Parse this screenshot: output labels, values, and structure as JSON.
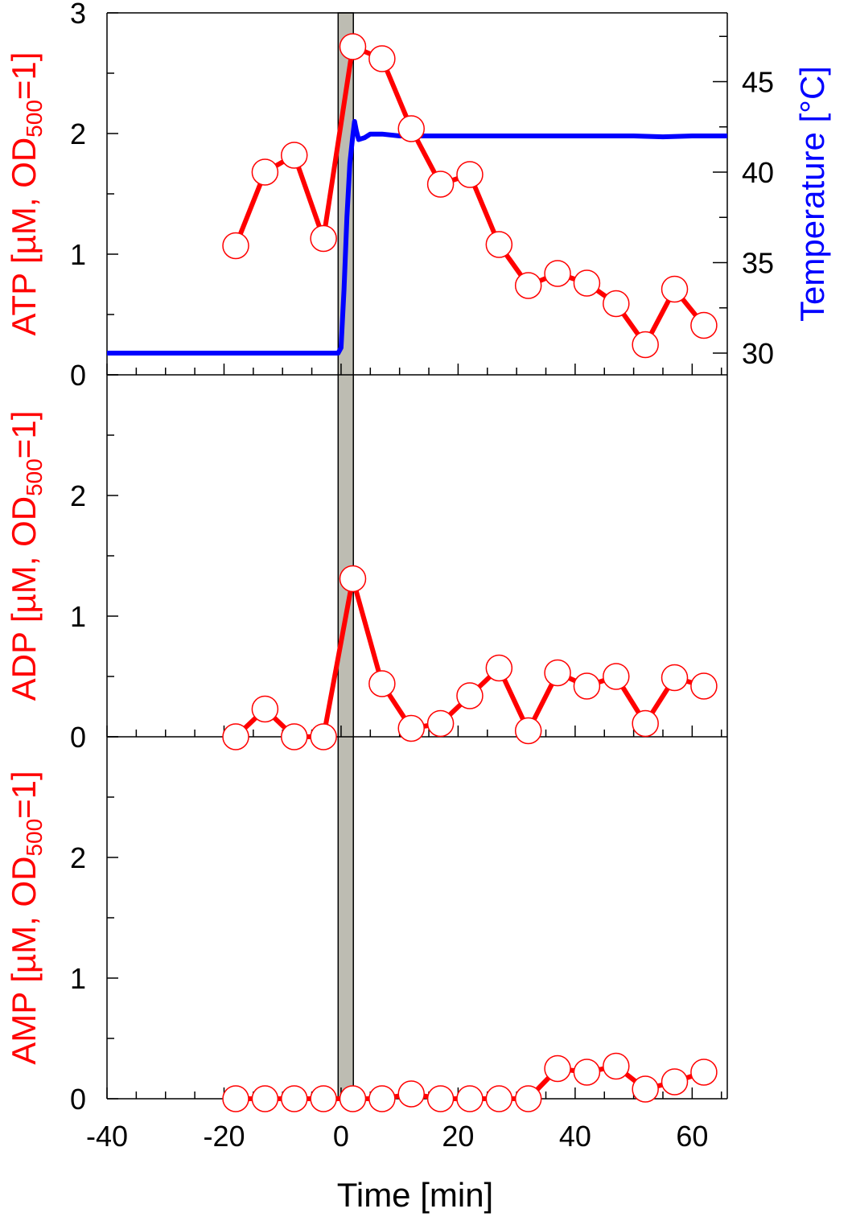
{
  "chart_data": {
    "type": "line",
    "xlabel": "Time [min]",
    "xlim": [
      -40,
      66
    ],
    "x_ticks": [
      -40,
      -20,
      0,
      20,
      40,
      60
    ],
    "heat_shock_band": [
      -0.5,
      2.1
    ],
    "colors": {
      "data": "#ff0000",
      "temperature": "#0000ff",
      "band": "#bdbcb2",
      "marker_fill": "#ffffff",
      "axis": "#000000"
    },
    "time_points": [
      -18,
      -13,
      -8,
      -3,
      2,
      7,
      12,
      17,
      22,
      27,
      32,
      37,
      42,
      47,
      52,
      57,
      62
    ],
    "panels": [
      {
        "id": "atp",
        "ylabel": {
          "pre": "ATP [µM, OD",
          "sub": "500",
          "post": "=1]"
        },
        "ylim": [
          0,
          3
        ],
        "y_ticks": [
          "0",
          "1",
          "2",
          "3"
        ],
        "values": [
          1.07,
          1.68,
          1.82,
          1.13,
          2.72,
          2.62,
          2.04,
          1.58,
          1.66,
          1.08,
          0.74,
          0.84,
          0.76,
          0.59,
          0.25,
          0.71,
          0.41
        ],
        "secondary_axis": {
          "label": "Temperature [°C]",
          "ylim": [
            28.8,
            48.8
          ],
          "y_ticks": [
            "30",
            "35",
            "40",
            "45"
          ],
          "series": {
            "name": "Temperature",
            "x": [
              -40,
              -20,
              -0.5,
              0,
              0.5,
              1,
              1.5,
              2,
              2.3,
              2.6,
              3,
              4,
              5,
              7,
              10,
              20,
              30,
              40,
              50,
              55,
              60,
              66
            ],
            "y": [
              30.0,
              30.0,
              30.0,
              30.3,
              33.5,
              37.5,
              40.5,
              42.0,
              42.8,
              42.3,
              41.8,
              41.9,
              42.1,
              42.1,
              42.0,
              42.0,
              42.0,
              42.0,
              42.0,
              41.95,
              42.0,
              42.0
            ]
          }
        }
      },
      {
        "id": "adp",
        "ylabel": {
          "pre": "ADP [µM, OD",
          "sub": "500",
          "post": "=1]"
        },
        "ylim": [
          0,
          3
        ],
        "y_ticks": [
          "0",
          "1",
          "2"
        ],
        "values": [
          0.0,
          0.23,
          0.0,
          0.0,
          1.31,
          0.44,
          0.07,
          0.11,
          0.34,
          0.57,
          0.05,
          0.53,
          0.42,
          0.5,
          0.11,
          0.49,
          0.42
        ]
      },
      {
        "id": "amp",
        "ylabel": {
          "pre": "AMP [µM, OD",
          "sub": "500",
          "post": "=1]"
        },
        "ylim": [
          0,
          3
        ],
        "y_ticks": [
          "0",
          "1",
          "2"
        ],
        "values": [
          0.0,
          0.0,
          0.0,
          0.0,
          0.0,
          0.0,
          0.04,
          0.0,
          0.0,
          0.0,
          0.0,
          0.25,
          0.22,
          0.27,
          0.08,
          0.14,
          0.22
        ]
      }
    ]
  }
}
